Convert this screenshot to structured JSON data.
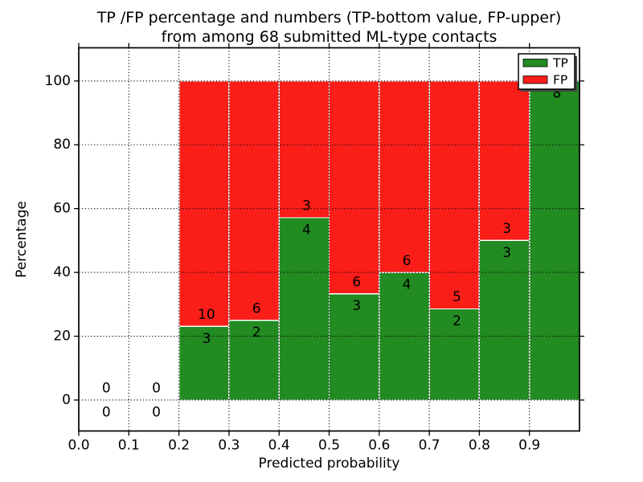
{
  "chart_data": {
    "type": "bar",
    "stacked": true,
    "title_lines": [
      "TP /FP percentage and numbers (TP-bottom value, FP-upper)",
      "from among 68 submitted ML-type contacts"
    ],
    "xlabel": "Predicted probability",
    "ylabel": "Percentage",
    "xlim": [
      0.0,
      1.0
    ],
    "ylim": [
      -9.7,
      110.4
    ],
    "xtick_values": [
      0.0,
      0.1,
      0.2,
      0.3,
      0.4,
      0.5,
      0.6,
      0.7,
      0.8,
      0.9
    ],
    "xtick_labels": [
      "0.0",
      "0.1",
      "0.2",
      "0.3",
      "0.4",
      "0.5",
      "0.6",
      "0.7",
      "0.8",
      "0.9"
    ],
    "ytick_values": [
      0,
      20,
      40,
      60,
      80,
      100
    ],
    "ytick_labels": [
      "0",
      "20",
      "40",
      "60",
      "80",
      "100"
    ],
    "grid": {
      "visible": true,
      "linestyle": "dotted",
      "color": "#000000"
    },
    "bin_width": 0.1,
    "total_contacts": 68,
    "bins": [
      {
        "bin_start": 0.0,
        "tp": 0,
        "fp": 0,
        "tp_pct": 0.0
      },
      {
        "bin_start": 0.1,
        "tp": 0,
        "fp": 0,
        "tp_pct": 0.0
      },
      {
        "bin_start": 0.2,
        "tp": 3,
        "fp": 10,
        "tp_pct": 23.08
      },
      {
        "bin_start": 0.3,
        "tp": 2,
        "fp": 6,
        "tp_pct": 25.0
      },
      {
        "bin_start": 0.4,
        "tp": 4,
        "fp": 3,
        "tp_pct": 57.14
      },
      {
        "bin_start": 0.5,
        "tp": 3,
        "fp": 6,
        "tp_pct": 33.33
      },
      {
        "bin_start": 0.6,
        "tp": 4,
        "fp": 6,
        "tp_pct": 40.0
      },
      {
        "bin_start": 0.7,
        "tp": 2,
        "fp": 5,
        "tp_pct": 28.57
      },
      {
        "bin_start": 0.8,
        "tp": 3,
        "fp": 3,
        "tp_pct": 50.0
      },
      {
        "bin_start": 0.9,
        "tp": 8,
        "fp": 0,
        "tp_pct": 100.0
      }
    ],
    "series": [
      {
        "name": "TP",
        "color": "#228B22",
        "counts": [
          0,
          0,
          3,
          2,
          4,
          3,
          4,
          2,
          3,
          8
        ]
      },
      {
        "name": "FP",
        "color": "#FA1E19",
        "counts": [
          0,
          0,
          10,
          6,
          3,
          6,
          6,
          5,
          3,
          0
        ]
      }
    ],
    "legend": {
      "position": "upper right",
      "entries": [
        {
          "label": "TP",
          "color": "#228B22"
        },
        {
          "label": "FP",
          "color": "#FA1E19"
        }
      ]
    },
    "colors": {
      "tp": "#228B22",
      "fp": "#FA1E19",
      "background": "#ffffff",
      "text": "#000000"
    }
  }
}
